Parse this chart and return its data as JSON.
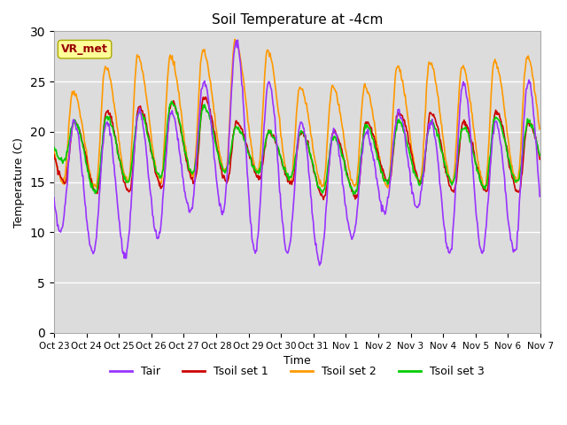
{
  "title": "Soil Temperature at -4cm",
  "xlabel": "Time",
  "ylabel": "Temperature (C)",
  "ylim": [
    0,
    30
  ],
  "yticks": [
    0,
    5,
    10,
    15,
    20,
    25,
    30
  ],
  "colors": {
    "Tair": "#9933FF",
    "Tsoil1": "#CC0000",
    "Tsoil2": "#FF9900",
    "Tsoil3": "#00CC00"
  },
  "legend_labels": [
    "Tair",
    "Tsoil set 1",
    "Tsoil set 2",
    "Tsoil set 3"
  ],
  "annotation_text": "VR_met",
  "annotation_box_color": "#FFFF99",
  "annotation_text_color": "#990000",
  "tick_labels": [
    "Oct 23",
    "Oct 24",
    "Oct 25",
    "Oct 26",
    "Oct 27",
    "Oct 28",
    "Oct 29",
    "Oct 30",
    "Oct 31",
    "Nov 1",
    "Nov 2",
    "Nov 3",
    "Nov 4",
    "Nov 5",
    "Nov 6",
    "Nov 7"
  ],
  "plot_bg_color": "#DCDCDC",
  "n_days": 15,
  "pts_per_day": 48,
  "tair_day_peaks": [
    21,
    21,
    22,
    22,
    25,
    29,
    25,
    21,
    20,
    20,
    22,
    21,
    25,
    21,
    25,
    21
  ],
  "tair_night_mins": [
    10,
    8,
    7.5,
    9.5,
    12,
    12,
    8,
    8,
    7,
    9.5,
    12,
    12.5,
    8,
    8,
    8,
    10
  ],
  "tsoil2_day_peaks": [
    24,
    26.5,
    27.5,
    27.5,
    28,
    29,
    28,
    24.5,
    24.5,
    24.5,
    26.5,
    27,
    26.5,
    27,
    27.5,
    25
  ],
  "tsoil2_night_mins": [
    15,
    14.5,
    15,
    15,
    15.5,
    16,
    16,
    15,
    14.5,
    14.5,
    14.5,
    15,
    15,
    14.5,
    15,
    15
  ],
  "tsoil1_day_peaks": [
    21,
    22,
    22.5,
    23,
    23.5,
    21,
    20,
    20,
    20,
    21,
    22,
    22,
    21,
    22,
    21,
    21
  ],
  "tsoil1_night_mins": [
    15,
    14,
    14,
    14.5,
    15,
    15,
    15.5,
    15,
    13.5,
    13.5,
    15,
    15,
    14,
    14,
    14,
    15
  ],
  "tsoil3_day_peaks": [
    21,
    21.5,
    22,
    23,
    22.5,
    20.5,
    20,
    20,
    19.5,
    20.5,
    21,
    21,
    20.5,
    21.5,
    21,
    20
  ],
  "tsoil3_night_mins": [
    17,
    14,
    15,
    15.5,
    16,
    16,
    16,
    15.5,
    14,
    14,
    15,
    15,
    15,
    14.5,
    15,
    15
  ]
}
